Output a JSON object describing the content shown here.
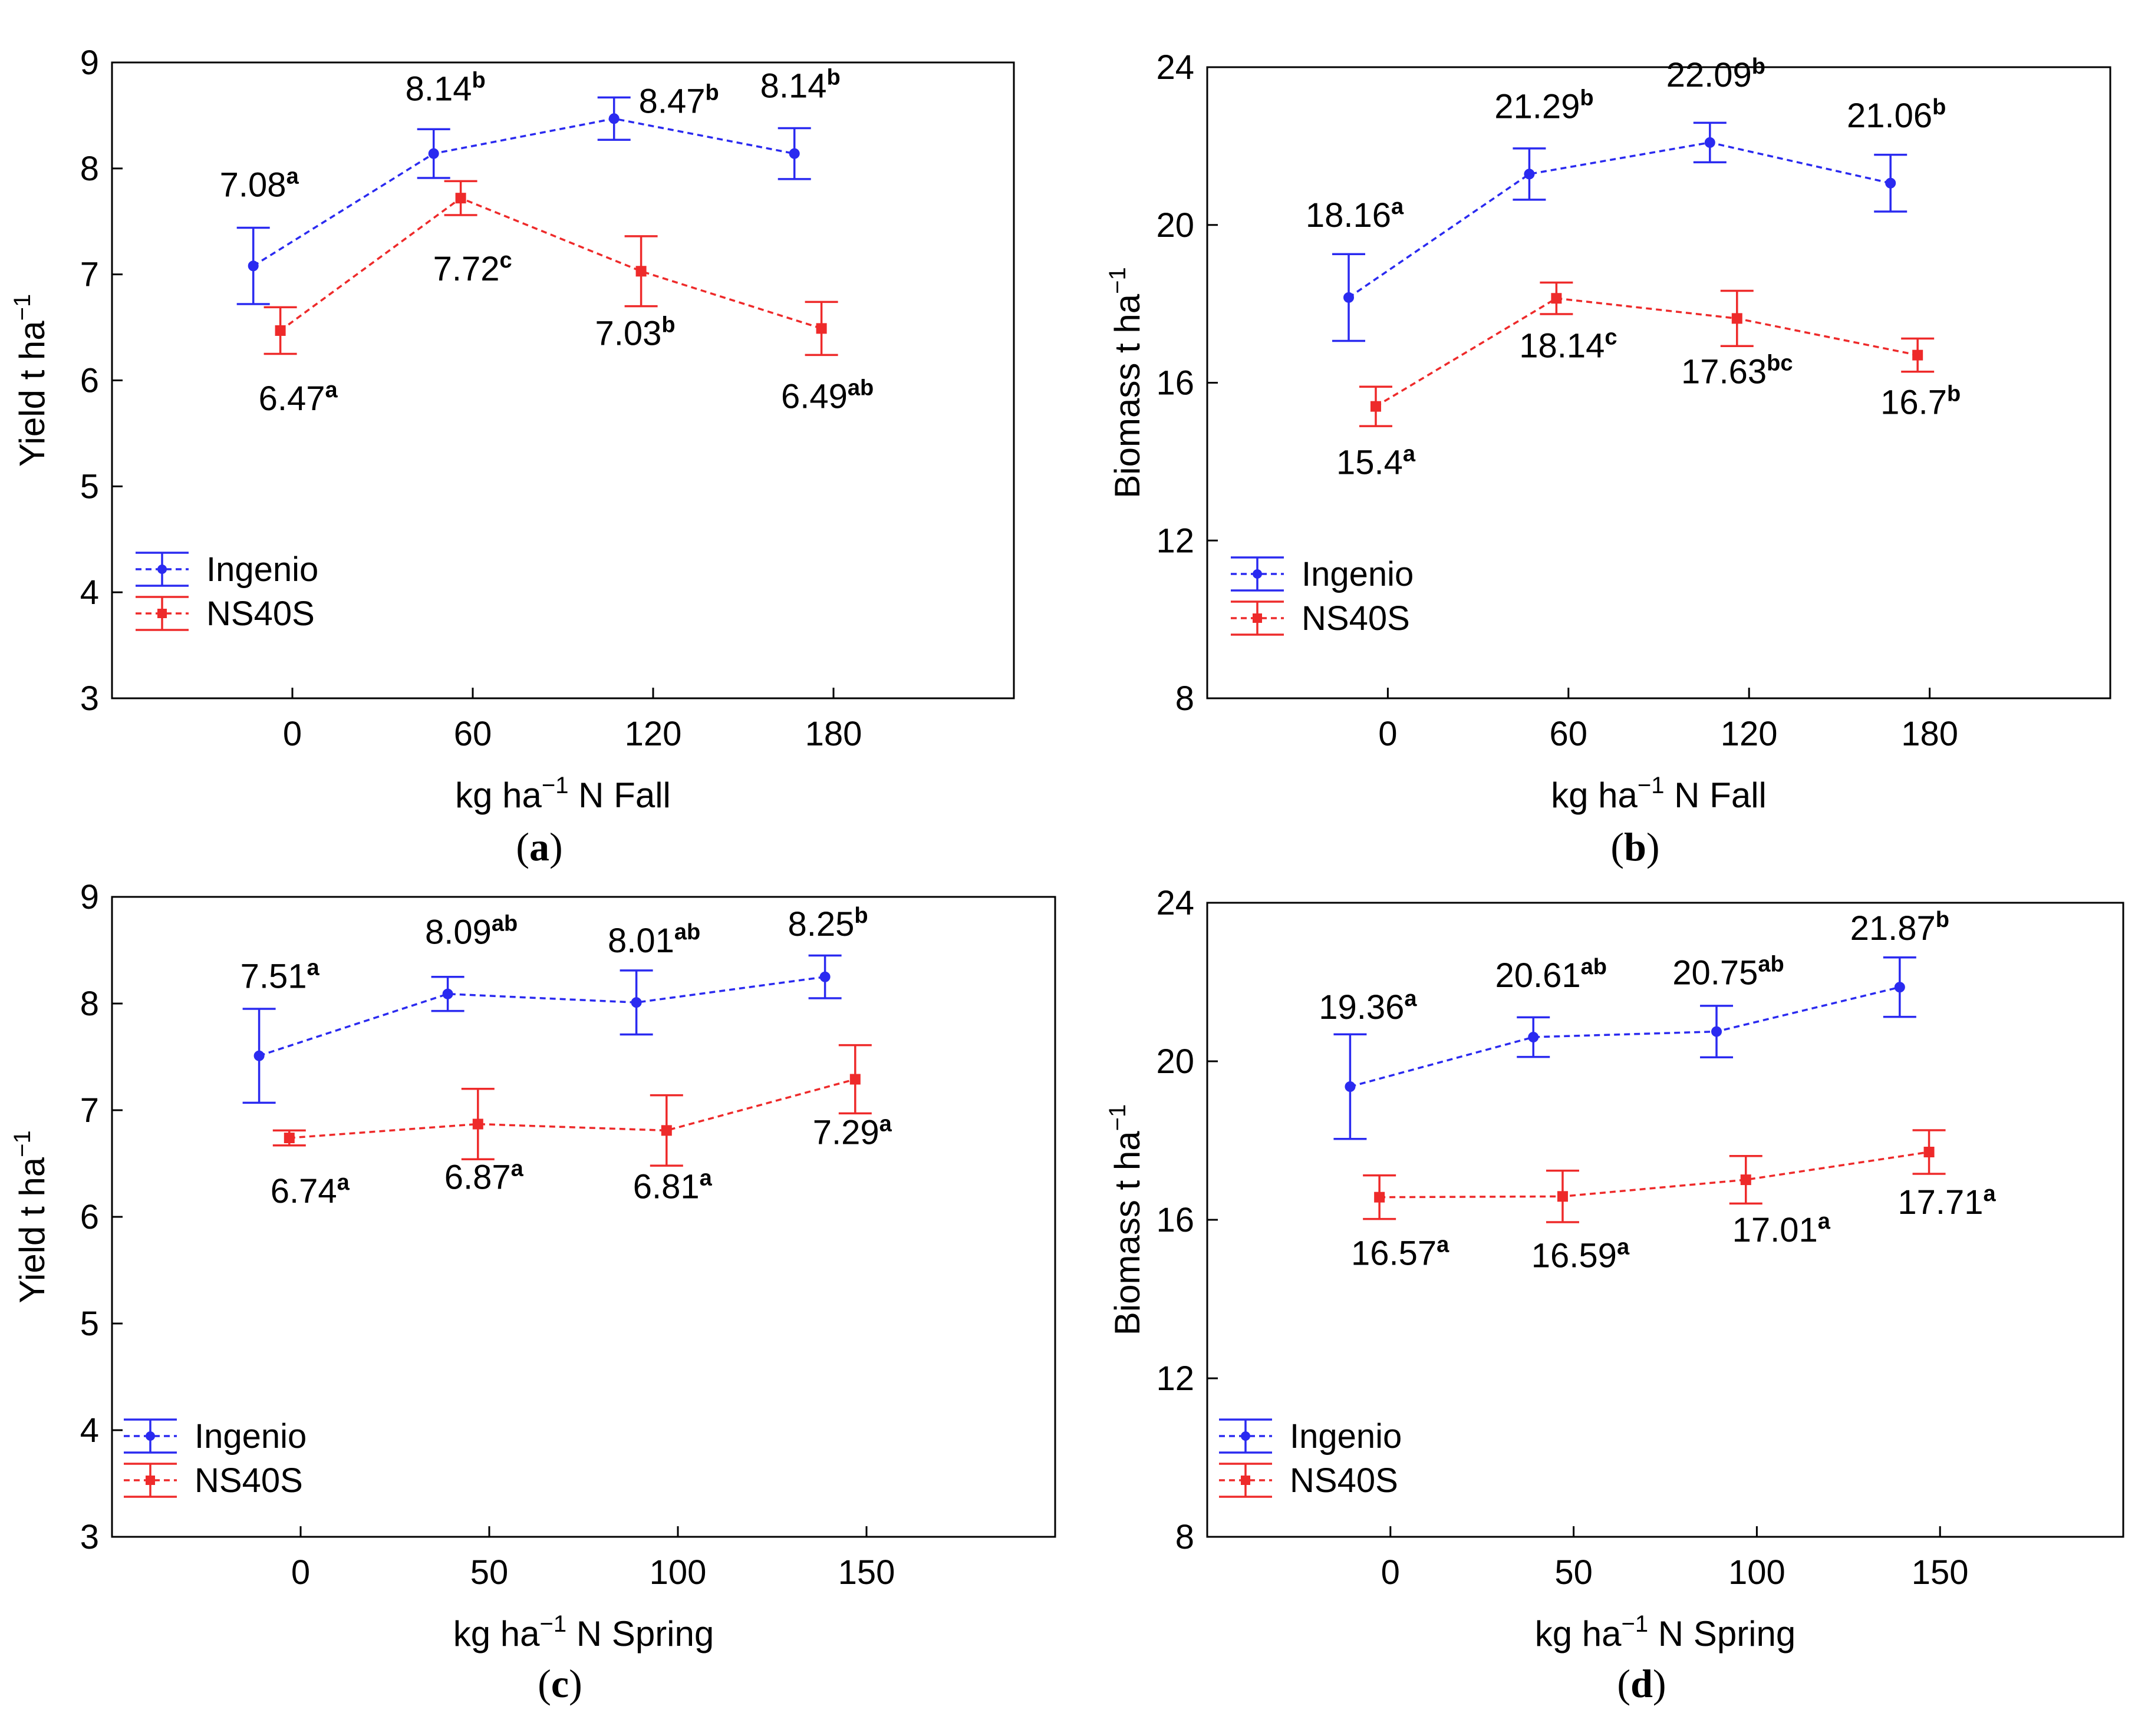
{
  "colors": {
    "ingenio": "#2a2af0",
    "ns40s": "#ee2a2a",
    "axis": "#000000"
  },
  "legend": {
    "series": [
      "Ingenio",
      "NS40S"
    ]
  },
  "chart_data": [
    {
      "type": "line",
      "panel_label": "(a)",
      "panel_letter": "a",
      "xlabel_prefix": "kg ha",
      "xlabel_sup": "−1",
      "xlabel_suffix": " N Fall",
      "ylabel_prefix": "Yield t ha",
      "ylabel_sup": "−1",
      "xticks": [
        0,
        60,
        120,
        180
      ],
      "yticks": [
        3,
        4,
        5,
        6,
        7,
        8,
        9
      ],
      "ylim": [
        3,
        9
      ],
      "xlim": [
        -60,
        240
      ],
      "x": [
        0,
        60,
        120,
        180
      ],
      "series": [
        {
          "name": "Ingenio",
          "color": "#2a2af0",
          "marker": "circle",
          "offset": -13,
          "values": [
            7.08,
            8.14,
            8.47,
            8.14
          ],
          "err": [
            0.36,
            0.23,
            0.2,
            0.24
          ],
          "labels": [
            "7.08",
            "8.14",
            "8.47",
            "8.14"
          ],
          "letters": [
            "a",
            "b",
            "b",
            "b"
          ]
        },
        {
          "name": "NS40S",
          "color": "#ee2a2a",
          "marker": "square",
          "offset": -4,
          "values": [
            6.47,
            7.72,
            7.03,
            6.49
          ],
          "err": [
            0.22,
            0.16,
            0.33,
            0.25
          ],
          "labels": [
            "6.47",
            "7.72",
            "7.03",
            "6.49"
          ],
          "letters": [
            "a",
            "c",
            "b",
            "ab"
          ]
        }
      ]
    },
    {
      "type": "line",
      "panel_label": "(b)",
      "panel_letter": "b",
      "xlabel_prefix": "kg ha",
      "xlabel_sup": "−1",
      "xlabel_suffix": " N Fall",
      "ylabel_prefix": "Biomass t ha",
      "ylabel_sup": "−1",
      "xticks": [
        0,
        60,
        120,
        180
      ],
      "yticks": [
        8,
        12,
        16,
        20,
        24
      ],
      "ylim": [
        8,
        24
      ],
      "xlim": [
        -60,
        240
      ],
      "x": [
        0,
        60,
        120,
        180
      ],
      "series": [
        {
          "name": "Ingenio",
          "color": "#2a2af0",
          "marker": "circle",
          "offset": -13,
          "values": [
            18.16,
            21.29,
            22.09,
            21.06
          ],
          "err": [
            1.1,
            0.65,
            0.5,
            0.72
          ],
          "labels": [
            "18.16",
            "21.29",
            "22.09",
            "21.06"
          ],
          "letters": [
            "a",
            "b",
            "b",
            "b"
          ]
        },
        {
          "name": "NS40S",
          "color": "#ee2a2a",
          "marker": "square",
          "offset": -4,
          "values": [
            15.4,
            18.14,
            17.63,
            16.7
          ],
          "err": [
            0.5,
            0.4,
            0.7,
            0.42
          ],
          "labels": [
            "15.4",
            "18.14",
            "17.63",
            "16.7"
          ],
          "letters": [
            "a",
            "c",
            "bc",
            "b"
          ]
        }
      ]
    },
    {
      "type": "line",
      "panel_label": "(c)",
      "panel_letter": "c",
      "xlabel_prefix": "kg ha",
      "xlabel_sup": "−1",
      "xlabel_suffix": " N Spring",
      "ylabel_prefix": "Yield t ha",
      "ylabel_sup": "−1",
      "xticks": [
        0,
        50,
        100,
        150
      ],
      "yticks": [
        3,
        4,
        5,
        6,
        7,
        8,
        9
      ],
      "ylim": [
        3,
        9
      ],
      "xlim": [
        -50,
        200
      ],
      "x": [
        0,
        50,
        100,
        150
      ],
      "series": [
        {
          "name": "Ingenio",
          "color": "#2a2af0",
          "marker": "circle",
          "offset": -11,
          "values": [
            7.51,
            8.09,
            8.01,
            8.25
          ],
          "err": [
            0.44,
            0.16,
            0.3,
            0.2
          ],
          "labels": [
            "7.51",
            "8.09",
            "8.01",
            "8.25"
          ],
          "letters": [
            "a",
            "ab",
            "ab",
            "b"
          ]
        },
        {
          "name": "NS40S",
          "color": "#ee2a2a",
          "marker": "square",
          "offset": -3,
          "values": [
            6.74,
            6.87,
            6.81,
            7.29
          ],
          "err": [
            0.07,
            0.33,
            0.33,
            0.32
          ],
          "labels": [
            "6.74",
            "6.87",
            "6.81",
            "7.29"
          ],
          "letters": [
            "a",
            "a",
            "a",
            "a"
          ]
        }
      ]
    },
    {
      "type": "line",
      "panel_label": "(d)",
      "panel_letter": "d",
      "xlabel_prefix": "kg ha",
      "xlabel_sup": "−1",
      "xlabel_suffix": " N Spring",
      "ylabel_prefix": "Biomass t ha",
      "ylabel_sup": "−1",
      "xticks": [
        0,
        50,
        100,
        150
      ],
      "yticks": [
        8,
        12,
        16,
        20,
        24
      ],
      "ylim": [
        8,
        24
      ],
      "xlim": [
        -50,
        200
      ],
      "x": [
        0,
        50,
        100,
        150
      ],
      "series": [
        {
          "name": "Ingenio",
          "color": "#2a2af0",
          "marker": "circle",
          "offset": -11,
          "values": [
            19.36,
            20.61,
            20.75,
            21.87
          ],
          "err": [
            1.32,
            0.5,
            0.65,
            0.75
          ],
          "labels": [
            "19.36",
            "20.61",
            "20.75",
            "21.87"
          ],
          "letters": [
            "a",
            "ab",
            "ab",
            "b"
          ]
        },
        {
          "name": "NS40S",
          "color": "#ee2a2a",
          "marker": "square",
          "offset": -3,
          "values": [
            16.57,
            16.59,
            17.01,
            17.71
          ],
          "err": [
            0.55,
            0.65,
            0.6,
            0.55
          ],
          "labels": [
            "16.57",
            "16.59",
            "17.01",
            "17.71"
          ],
          "letters": [
            "a",
            "a",
            "a",
            "a"
          ]
        }
      ]
    }
  ]
}
